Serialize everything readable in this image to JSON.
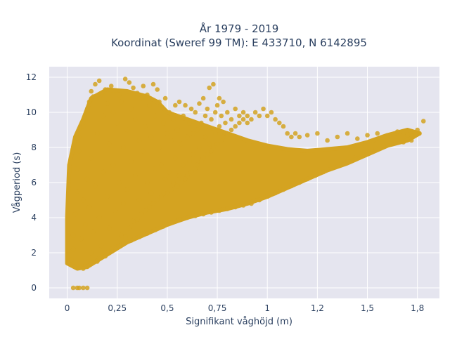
{
  "chart_data": {
    "type": "scatter",
    "title_line1": "År 1979 - 2019",
    "title_line2": "Koordinat (Sweref 99 TM): E 433710, N 6142895",
    "xlabel": "Signifikant våghöjd (m)",
    "ylabel": "Vågperiod (s)",
    "xlim": [
      -0.09,
      1.86
    ],
    "ylim": [
      -0.6,
      12.6
    ],
    "x_ticks": [
      {
        "value": 0,
        "label": "0"
      },
      {
        "value": 0.25,
        "label": "0,25"
      },
      {
        "value": 0.5,
        "label": "0,5"
      },
      {
        "value": 0.75,
        "label": "0,75"
      },
      {
        "value": 1,
        "label": "1"
      },
      {
        "value": 1.25,
        "label": "1,2"
      },
      {
        "value": 1.5,
        "label": "1,5"
      },
      {
        "value": 1.75,
        "label": "1,8"
      }
    ],
    "y_ticks": [
      {
        "value": 0,
        "label": "0"
      },
      {
        "value": 2,
        "label": "2"
      },
      {
        "value": 4,
        "label": "4"
      },
      {
        "value": 6,
        "label": "6"
      },
      {
        "value": 8,
        "label": "8"
      },
      {
        "value": 10,
        "label": "10"
      },
      {
        "value": 12,
        "label": "12"
      }
    ],
    "marker_color": "#d4a321",
    "plot_background": "#e5e5ef",
    "grid": true,
    "points": [
      [
        0.02,
        1.6
      ],
      [
        0.03,
        2.2
      ],
      [
        0.03,
        3.0
      ],
      [
        0.04,
        4.2
      ],
      [
        0.05,
        5.5
      ],
      [
        0.05,
        6.8
      ],
      [
        0.06,
        7.8
      ],
      [
        0.06,
        8.6
      ],
      [
        0.07,
        1.3
      ],
      [
        0.07,
        2.8
      ],
      [
        0.08,
        9.2
      ],
      [
        0.08,
        5.0
      ],
      [
        0.09,
        3.6
      ],
      [
        0.09,
        9.6
      ],
      [
        0.1,
        1.2
      ],
      [
        0.1,
        10.2
      ],
      [
        0.1,
        6.2
      ],
      [
        0.11,
        4.6
      ],
      [
        0.11,
        10.6
      ],
      [
        0.12,
        2.0
      ],
      [
        0.12,
        11.2
      ],
      [
        0.12,
        7.4
      ],
      [
        0.13,
        3.2
      ],
      [
        0.13,
        10.9
      ],
      [
        0.14,
        5.8
      ],
      [
        0.14,
        11.6
      ],
      [
        0.15,
        1.5
      ],
      [
        0.15,
        8.8
      ],
      [
        0.16,
        11.8
      ],
      [
        0.16,
        4.0
      ],
      [
        0.17,
        2.4
      ],
      [
        0.17,
        11.0
      ],
      [
        0.18,
        6.6
      ],
      [
        0.18,
        9.8
      ],
      [
        0.19,
        1.8
      ],
      [
        0.19,
        11.3
      ],
      [
        0.2,
        5.2
      ],
      [
        0.2,
        10.5
      ],
      [
        0.21,
        3.4
      ],
      [
        0.21,
        8.2
      ],
      [
        0.22,
        11.5
      ],
      [
        0.22,
        2.2
      ],
      [
        0.23,
        7.0
      ],
      [
        0.23,
        10.0
      ],
      [
        0.24,
        4.4
      ],
      [
        0.24,
        11.2
      ],
      [
        0.25,
        2.6
      ],
      [
        0.25,
        9.4
      ],
      [
        0.26,
        6.0
      ],
      [
        0.26,
        11.0
      ],
      [
        0.27,
        3.0
      ],
      [
        0.27,
        10.6
      ],
      [
        0.28,
        8.0
      ],
      [
        0.28,
        4.8
      ],
      [
        0.29,
        11.9
      ],
      [
        0.29,
        2.9
      ],
      [
        0.3,
        9.0
      ],
      [
        0.3,
        5.6
      ],
      [
        0.31,
        11.7
      ],
      [
        0.31,
        3.4
      ],
      [
        0.32,
        10.2
      ],
      [
        0.32,
        7.2
      ],
      [
        0.33,
        3.8
      ],
      [
        0.33,
        11.4
      ],
      [
        0.34,
        6.4
      ],
      [
        0.34,
        9.6
      ],
      [
        0.35,
        3.9
      ],
      [
        0.35,
        11.1
      ],
      [
        0.36,
        8.4
      ],
      [
        0.36,
        5.0
      ],
      [
        0.37,
        10.8
      ],
      [
        0.37,
        4.2
      ],
      [
        0.38,
        7.8
      ],
      [
        0.38,
        11.5
      ],
      [
        0.39,
        4.4
      ],
      [
        0.39,
        9.2
      ],
      [
        0.4,
        11.0
      ],
      [
        0.4,
        6.0
      ],
      [
        0.41,
        4.6
      ],
      [
        0.41,
        10.4
      ],
      [
        0.42,
        8.6
      ],
      [
        0.42,
        5.4
      ],
      [
        0.43,
        11.6
      ],
      [
        0.43,
        4.8
      ],
      [
        0.44,
        9.8
      ],
      [
        0.44,
        6.8
      ],
      [
        0.45,
        11.3
      ],
      [
        0.45,
        5.0
      ],
      [
        0.46,
        8.0
      ],
      [
        0.46,
        10.6
      ],
      [
        0.47,
        5.2
      ],
      [
        0.47,
        7.0
      ],
      [
        0.48,
        9.4
      ],
      [
        0.48,
        5.4
      ],
      [
        0.49,
        10.8
      ],
      [
        0.49,
        6.2
      ],
      [
        0.5,
        8.8
      ],
      [
        0.5,
        5.4
      ],
      [
        0.51,
        10.0
      ],
      [
        0.51,
        6.6
      ],
      [
        0.52,
        8.4
      ],
      [
        0.52,
        5.6
      ],
      [
        0.53,
        9.6
      ],
      [
        0.53,
        6.0
      ],
      [
        0.54,
        10.4
      ],
      [
        0.54,
        7.4
      ],
      [
        0.55,
        5.8
      ],
      [
        0.55,
        9.0
      ],
      [
        0.56,
        10.6
      ],
      [
        0.56,
        6.4
      ],
      [
        0.57,
        8.2
      ],
      [
        0.57,
        6.0
      ],
      [
        0.58,
        9.8
      ],
      [
        0.58,
        7.0
      ],
      [
        0.59,
        6.2
      ],
      [
        0.59,
        10.4
      ],
      [
        0.6,
        8.6
      ],
      [
        0.6,
        6.4
      ],
      [
        0.61,
        9.4
      ],
      [
        0.61,
        7.2
      ],
      [
        0.62,
        10.2
      ],
      [
        0.62,
        6.6
      ],
      [
        0.63,
        8.8
      ],
      [
        0.63,
        7.6
      ],
      [
        0.64,
        6.8
      ],
      [
        0.64,
        10.0
      ],
      [
        0.65,
        9.0
      ],
      [
        0.65,
        7.0
      ],
      [
        0.66,
        10.5
      ],
      [
        0.66,
        8.0
      ],
      [
        0.67,
        7.2
      ],
      [
        0.67,
        9.4
      ],
      [
        0.68,
        10.8
      ],
      [
        0.68,
        7.4
      ],
      [
        0.69,
        8.6
      ],
      [
        0.69,
        9.8
      ],
      [
        0.7,
        7.6
      ],
      [
        0.7,
        10.2
      ],
      [
        0.71,
        8.2
      ],
      [
        0.71,
        11.4
      ],
      [
        0.72,
        7.8
      ],
      [
        0.72,
        9.6
      ],
      [
        0.73,
        11.6
      ],
      [
        0.73,
        8.0
      ],
      [
        0.74,
        10.0
      ],
      [
        0.74,
        8.8
      ],
      [
        0.75,
        10.4
      ],
      [
        0.75,
        8.2
      ],
      [
        0.76,
        9.2
      ],
      [
        0.76,
        10.8
      ],
      [
        0.77,
        8.4
      ],
      [
        0.77,
        9.8
      ],
      [
        0.78,
        10.6
      ],
      [
        0.78,
        8.6
      ],
      [
        0.79,
        9.4
      ],
      [
        0.8,
        8.8
      ],
      [
        0.8,
        10.0
      ],
      [
        0.82,
        9.0
      ],
      [
        0.82,
        9.6
      ],
      [
        0.84,
        9.2
      ],
      [
        0.84,
        10.2
      ],
      [
        0.86,
        9.4
      ],
      [
        0.86,
        9.8
      ],
      [
        0.88,
        9.6
      ],
      [
        0.88,
        10.0
      ],
      [
        0.9,
        9.8
      ],
      [
        0.9,
        9.4
      ],
      [
        0.92,
        9.6
      ],
      [
        0.94,
        10.0
      ],
      [
        0.96,
        9.8
      ],
      [
        0.98,
        10.2
      ],
      [
        1.0,
        9.8
      ],
      [
        1.02,
        10.0
      ],
      [
        1.04,
        9.6
      ],
      [
        1.06,
        9.4
      ],
      [
        1.08,
        9.2
      ],
      [
        1.1,
        8.8
      ],
      [
        1.12,
        8.6
      ],
      [
        1.14,
        8.8
      ],
      [
        1.16,
        8.6
      ],
      [
        1.2,
        8.7
      ],
      [
        1.25,
        8.8
      ],
      [
        1.3,
        8.4
      ],
      [
        1.35,
        8.6
      ],
      [
        1.4,
        8.8
      ],
      [
        1.45,
        8.5
      ],
      [
        1.5,
        8.7
      ],
      [
        1.55,
        8.8
      ],
      [
        1.6,
        8.6
      ],
      [
        1.65,
        8.9
      ],
      [
        1.7,
        8.7
      ],
      [
        1.75,
        9.0
      ],
      [
        1.78,
        9.5
      ],
      [
        1.76,
        8.8
      ],
      [
        1.72,
        8.4
      ],
      [
        1.68,
        8.3
      ],
      [
        1.62,
        8.2
      ],
      [
        1.58,
        8.1
      ],
      [
        1.52,
        7.9
      ],
      [
        1.48,
        7.6
      ],
      [
        1.44,
        7.4
      ],
      [
        1.4,
        7.2
      ],
      [
        1.36,
        7.0
      ],
      [
        1.32,
        6.8
      ],
      [
        1.28,
        6.6
      ],
      [
        1.24,
        6.4
      ],
      [
        1.2,
        6.2
      ],
      [
        1.16,
        6.0
      ],
      [
        1.12,
        5.8
      ],
      [
        1.08,
        5.6
      ],
      [
        1.04,
        5.4
      ],
      [
        1.0,
        5.2
      ],
      [
        0.96,
        5.0
      ],
      [
        0.92,
        4.8
      ],
      [
        0.88,
        4.7
      ],
      [
        0.84,
        4.6
      ],
      [
        0.8,
        4.5
      ],
      [
        0.76,
        4.4
      ],
      [
        0.72,
        4.3
      ],
      [
        0.68,
        4.2
      ],
      [
        0.64,
        4.1
      ],
      [
        0.6,
        4.0
      ],
      [
        0.56,
        3.9
      ],
      [
        0.52,
        3.7
      ],
      [
        0.48,
        3.5
      ],
      [
        0.44,
        3.3
      ],
      [
        0.4,
        3.1
      ],
      [
        0.36,
        2.9
      ],
      [
        0.32,
        2.7
      ],
      [
        0.28,
        2.5
      ],
      [
        0.24,
        2.3
      ],
      [
        0.2,
        2.0
      ],
      [
        0.16,
        1.7
      ],
      [
        0.12,
        1.4
      ],
      [
        0.08,
        1.1
      ],
      [
        0.05,
        0.0
      ],
      [
        0.03,
        0.0
      ],
      [
        0.06,
        0.0
      ],
      [
        0.08,
        0.0
      ],
      [
        0.1,
        0.0
      ]
    ]
  }
}
